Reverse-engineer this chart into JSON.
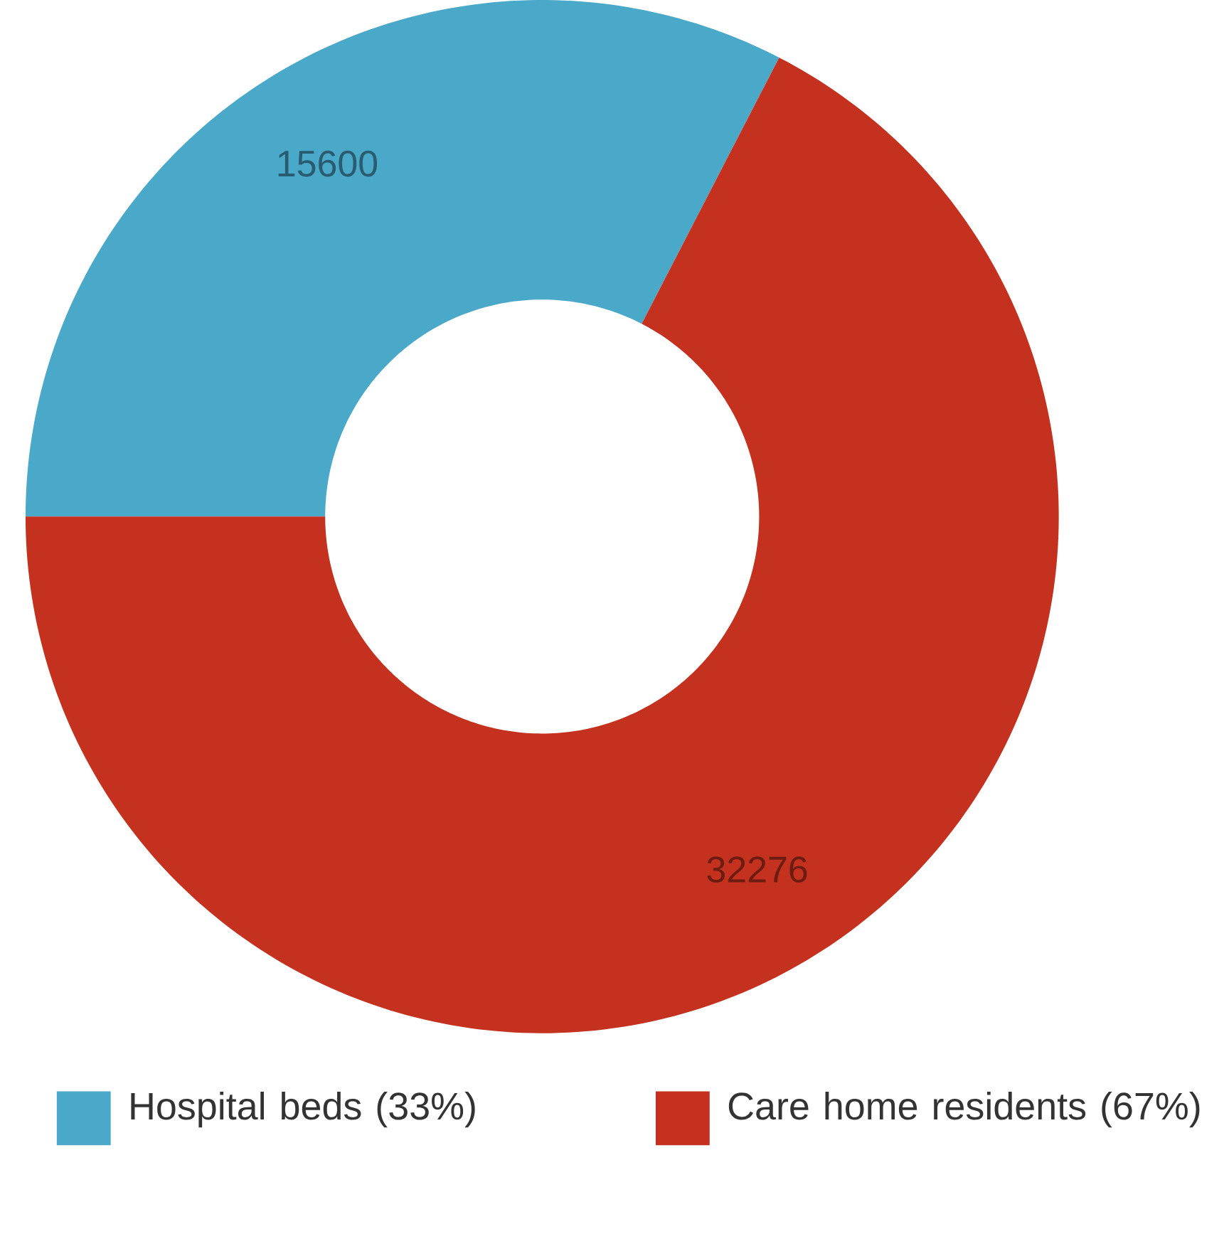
{
  "chart_data": {
    "type": "donut",
    "categories": [
      "Hospital beds (33%)",
      "Care home residents (67%)"
    ],
    "values": [
      15600,
      32276
    ],
    "colors": [
      "#4aa8c9",
      "#c4321f"
    ],
    "data_labels": true,
    "legend": "bottom"
  }
}
